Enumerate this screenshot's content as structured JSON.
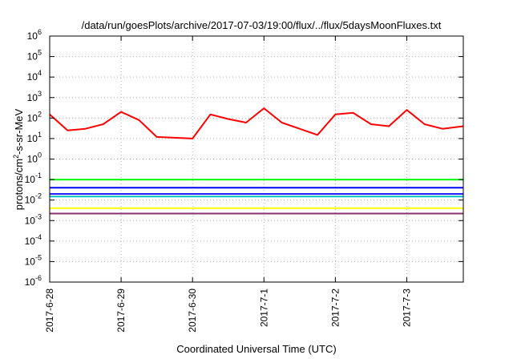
{
  "chart_data": {
    "type": "line",
    "title": "/data/run/goesPlots/archive/2017-07-03/19:00/flux/../flux/5daysMoonFluxes.txt",
    "xlabel": "Coordinated Universal Time (UTC)",
    "ylabel": {
      "pre": "protons/cm",
      "sup": "2",
      "post": "-s-sr-MeV"
    },
    "yscale": "log",
    "ylim_exponents": [
      -6,
      6
    ],
    "y_ticks": [
      {
        "base": "10",
        "exp": "6"
      },
      {
        "base": "10",
        "exp": "5"
      },
      {
        "base": "10",
        "exp": "4"
      },
      {
        "base": "10",
        "exp": "3"
      },
      {
        "base": "10",
        "exp": "2"
      },
      {
        "base": "10",
        "exp": "1"
      },
      {
        "base": "10",
        "exp": "0"
      },
      {
        "base": "10",
        "exp": "-1"
      },
      {
        "base": "10",
        "exp": "-2"
      },
      {
        "base": "10",
        "exp": "-3"
      },
      {
        "base": "10",
        "exp": "-4"
      },
      {
        "base": "10",
        "exp": "-5"
      },
      {
        "base": "10",
        "exp": "-6"
      }
    ],
    "x_ticks": [
      "2017-6-28",
      "2017-6-29",
      "2017-6-30",
      "2017-7-1",
      "2017-7-2",
      "2017-7-3"
    ],
    "xlim": [
      "2017-06-28 00:00",
      "2017-07-03 19:00"
    ],
    "grid": true,
    "series": [
      {
        "color": "#ff0000",
        "x": [
          "2017-06-28 00:00",
          "2017-06-28 06:00",
          "2017-06-28 12:00",
          "2017-06-28 18:00",
          "2017-06-29 00:00",
          "2017-06-29 06:00",
          "2017-06-29 12:00",
          "2017-06-29 18:00",
          "2017-06-30 00:00",
          "2017-06-30 06:00",
          "2017-06-30 12:00",
          "2017-06-30 18:00",
          "2017-07-01 00:00",
          "2017-07-01 06:00",
          "2017-07-01 12:00",
          "2017-07-01 18:00",
          "2017-07-02 00:00",
          "2017-07-02 06:00",
          "2017-07-02 12:00",
          "2017-07-02 18:00",
          "2017-07-03 00:00",
          "2017-07-03 06:00",
          "2017-07-03 12:00",
          "2017-07-03 19:00"
        ],
        "y": [
          150,
          25,
          30,
          50,
          200,
          80,
          12,
          11,
          10,
          150,
          90,
          60,
          300,
          60,
          30,
          15,
          150,
          180,
          50,
          40,
          250,
          50,
          30,
          40
        ]
      },
      {
        "color": "#00ff00",
        "x": [
          "2017-06-28 00:00",
          "2017-07-03 19:00"
        ],
        "y": [
          0.1,
          0.1
        ]
      },
      {
        "color": "#0000ff",
        "x": [
          "2017-06-28 00:00",
          "2017-07-03 19:00"
        ],
        "y": [
          0.04,
          0.04
        ]
      },
      {
        "color": "#00c0c0",
        "x": [
          "2017-06-28 00:00",
          "2017-07-03 19:00"
        ],
        "y": [
          0.015,
          0.015
        ]
      },
      {
        "color": "#2020ff",
        "x": [
          "2017-06-28 00:00",
          "2017-07-03 19:00"
        ],
        "y": [
          0.02,
          0.02
        ]
      },
      {
        "color": "#ffff00",
        "x": [
          "2017-06-28 00:00",
          "2017-07-03 19:00"
        ],
        "y": [
          0.004,
          0.004
        ]
      },
      {
        "color": "#8b2f6f",
        "x": [
          "2017-06-28 00:00",
          "2017-07-03 19:00"
        ],
        "y": [
          0.0022,
          0.0022
        ]
      }
    ]
  }
}
